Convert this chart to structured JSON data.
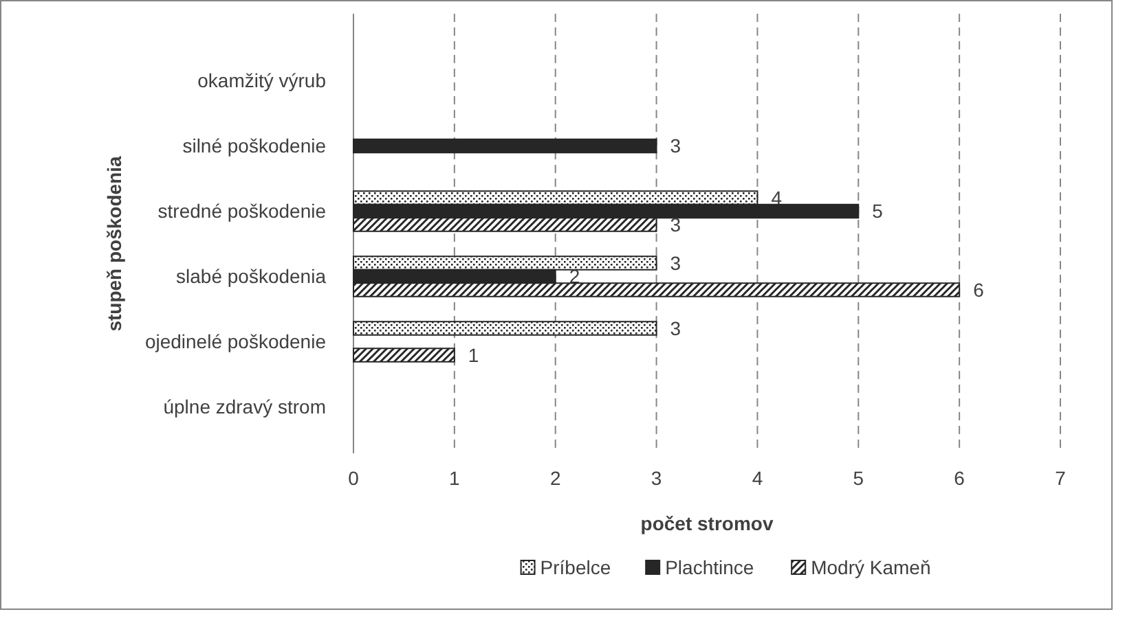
{
  "chart_data": {
    "type": "bar",
    "orientation": "horizontal",
    "xlabel": "počet stromov",
    "ylabel": "stupeň poškodenia",
    "categories": [
      "okamžitý výrub",
      "silné poškodenie",
      "stredné poškodenie",
      "slabé poškodenia",
      "ojedinelé poškodenie",
      "úplne zdravý strom"
    ],
    "series": [
      {
        "name": "Príbelce",
        "color": "#262626",
        "values": [
          null,
          null,
          4,
          3,
          3,
          null
        ]
      },
      {
        "name": "Plachtince",
        "color": "#262626",
        "values": [
          null,
          3,
          5,
          2,
          null,
          null
        ]
      },
      {
        "name": "Modrý Kameň",
        "color": "#262626",
        "values": [
          null,
          null,
          3,
          6,
          1,
          null
        ]
      }
    ],
    "xlim": [
      0,
      7
    ],
    "xticks": [
      0,
      1,
      2,
      3,
      4,
      5,
      6,
      7
    ],
    "grid": "x",
    "legend": "bottom",
    "data_labels": true
  }
}
